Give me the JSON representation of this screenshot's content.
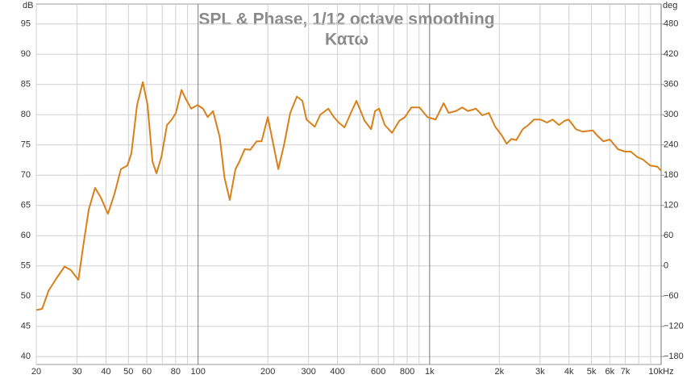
{
  "chart_data": {
    "type": "line",
    "title": "SPL & Phase, 1/12 octave smoothing",
    "subtitle": "Κατω",
    "y_label": "dB",
    "y2_label": "deg",
    "x_scale": "log",
    "grid": true,
    "xlim": [
      20,
      10000
    ],
    "ylim": [
      38.7,
      98.3
    ],
    "y2lim": [
      -195.6,
      519.6
    ],
    "xticks": [
      20,
      30,
      40,
      50,
      60,
      80,
      100,
      200,
      300,
      400,
      600,
      800,
      {
        "value": 1000,
        "label": "1k"
      },
      {
        "value": 2000,
        "label": "2k"
      },
      {
        "value": 3000,
        "label": "3k"
      },
      {
        "value": 4000,
        "label": "4k"
      },
      {
        "value": 5000,
        "label": "5k"
      },
      {
        "value": 6000,
        "label": "6k"
      },
      {
        "value": 7000,
        "label": "7k"
      },
      {
        "value": 10000,
        "label": "10kHz"
      }
    ],
    "xminorticks": [
      70,
      90,
      500,
      700,
      900,
      8000,
      9000
    ],
    "yticks": [
      40,
      45,
      50,
      55,
      60,
      65,
      70,
      75,
      80,
      85,
      90,
      95
    ],
    "y2ticks": [
      {
        "value": -180,
        "label": "−180"
      },
      {
        "value": -120,
        "label": "−120"
      },
      {
        "value": -60,
        "label": "−60"
      },
      0,
      60,
      120,
      180,
      240,
      300,
      360,
      420,
      480
    ],
    "x": [
      20,
      21.2,
      22.6,
      24.4,
      26.5,
      28.2,
      30.4,
      32.1,
      33.7,
      35.9,
      38.0,
      40.8,
      43.6,
      46.4,
      49.5,
      51.5,
      54.5,
      57.7,
      60.5,
      63.5,
      66.1,
      69.4,
      73.4,
      77.0,
      80.2,
      84.8,
      88.2,
      93.3,
      99.5,
      105,
      110,
      116,
      124,
      130,
      137,
      145,
      151,
      159,
      168,
      179,
      188,
      200,
      210,
      222,
      235,
      250,
      267,
      282,
      294,
      319,
      337,
      365,
      386,
      405,
      429,
      457,
      483,
      524,
      559,
      581,
      605,
      640,
      688,
      740,
      782,
      834,
      904,
      979,
      1061,
      1150,
      1207,
      1297,
      1383,
      1463,
      1585,
      1690,
      1802,
      1921,
      2048,
      2150,
      2257,
      2368,
      2524,
      2670,
      2824,
      3012,
      3212,
      3396,
      3622,
      3830,
      3988,
      4286,
      4570,
      5074,
      5282,
      5630,
      6006,
      6506,
      6992,
      7396,
      7886,
      8342,
      8966,
      9638,
      10024
    ],
    "series": [
      {
        "color": "#d9801a",
        "values": [
          47.7,
          47.9,
          50.9,
          52.9,
          54.9,
          54.3,
          52.7,
          59.0,
          64.3,
          67.9,
          66.3,
          63.6,
          67.0,
          71.0,
          71.6,
          73.6,
          81.6,
          85.4,
          81.6,
          72.3,
          70.3,
          73.0,
          78.3,
          79.2,
          80.3,
          84.1,
          82.7,
          81.0,
          81.6,
          81.0,
          79.6,
          80.6,
          76.3,
          69.6,
          65.9,
          71.0,
          72.3,
          74.3,
          74.2,
          75.6,
          75.6,
          79.6,
          75.6,
          71.0,
          75.0,
          80.3,
          83.0,
          82.3,
          79.2,
          78.0,
          80.0,
          81.0,
          79.6,
          78.7,
          77.9,
          80.3,
          82.3,
          79.0,
          77.6,
          80.6,
          81.0,
          78.3,
          77.0,
          79.0,
          79.6,
          81.2,
          81.2,
          79.6,
          79.2,
          81.9,
          80.3,
          80.6,
          81.2,
          80.6,
          81.0,
          79.9,
          80.3,
          78.0,
          76.6,
          75.2,
          76.0,
          75.8,
          77.6,
          78.3,
          79.2,
          79.2,
          78.7,
          79.2,
          78.3,
          79.0,
          79.2,
          77.6,
          77.2,
          77.4,
          76.6,
          75.6,
          75.9,
          74.3,
          73.9,
          73.9,
          73.0,
          72.6,
          71.6,
          71.4,
          70.7
        ]
      }
    ]
  }
}
